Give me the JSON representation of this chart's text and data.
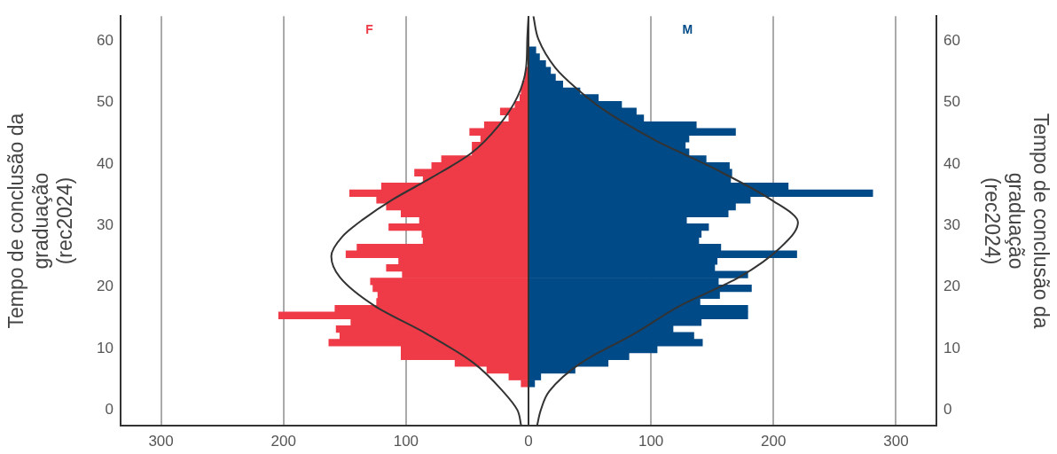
{
  "chart_data": {
    "type": "bar",
    "orientation": "horizontal",
    "stacked": true,
    "ylabel": "Tempo de conclusão da graduação (rec2024)",
    "y2label": "Tempo de conclusão da graduação (rec2024)",
    "x": [
      4.35,
      5.46,
      6.56,
      7.66,
      8.77,
      9.87,
      10.98,
      12.08,
      13.18,
      14.29,
      15.39,
      16.5,
      17.6,
      18.7,
      19.81,
      20.91,
      22.02,
      23.12,
      24.22,
      25.33,
      26.43,
      27.54,
      28.64,
      29.74,
      30.85,
      31.95,
      33.06,
      34.16,
      35.26,
      36.37,
      37.47,
      38.58,
      39.68,
      40.78,
      41.89,
      42.99,
      44.1,
      45.2,
      46.3,
      47.41,
      48.51,
      49.62,
      50.72,
      51.82,
      52.93,
      54.03,
      55.14,
      56.24,
      57.34,
      58.45
    ],
    "series": [
      {
        "name": "F",
        "color": "#ee3b47",
        "values": [
          -6,
          -16,
          -34,
          -60,
          -104,
          -104,
          -163,
          -154,
          -157,
          -145,
          -204,
          -158,
          -124,
          -123,
          -127,
          -129,
          -103,
          -116,
          -106,
          -149,
          -140,
          -86,
          -87,
          -114,
          -89,
          -104,
          -116,
          -124,
          -146,
          -120,
          -86,
          -93,
          -79,
          -71,
          -46,
          -46,
          -39,
          -48,
          -36,
          -16,
          -23,
          -11,
          -7,
          -6,
          -5,
          -3,
          -2,
          0,
          0,
          0
        ]
      },
      {
        "name": "M",
        "color": "#004a87",
        "values": [
          5,
          10,
          38,
          65,
          82,
          105,
          142,
          135,
          118,
          141,
          179,
          179,
          140,
          156,
          182,
          155,
          179,
          152,
          154,
          219,
          157,
          139,
          141,
          147,
          129,
          163,
          169,
          181,
          281,
          212,
          165,
          166,
          164,
          145,
          131,
          128,
          131,
          169,
          137,
          94,
          88,
          76,
          57,
          42,
          28,
          22,
          18,
          14,
          9,
          6
        ]
      },
      {
        "type": "line",
        "color": "#333333",
        "x": [
          -2.5,
          0,
          3.1,
          7.7,
          12.4,
          17.0,
          21.6,
          25.0,
          28.2,
          31.0,
          34.2,
          37.9,
          41.7,
          46.3,
          50.9,
          55.6,
          60.3,
          64
        ],
        "values": [
          -6,
          -9,
          -21,
          -45,
          -83,
          -126,
          -154,
          -161,
          -152,
          -135,
          -111,
          -78,
          -47,
          -24,
          -9,
          -2,
          -1,
          0
        ]
      },
      {
        "type": "line",
        "color": "#333333",
        "x": [
          -2.5,
          0,
          3.1,
          7.7,
          12.4,
          17.0,
          21.6,
          26.3,
          30.5,
          34.2,
          39.3,
          43.9,
          48.7,
          52.3,
          55.6,
          60.3,
          64
        ],
        "values": [
          7,
          10,
          17,
          43,
          86,
          124,
          172,
          205,
          220,
          198,
          151,
          103,
          62,
          39,
          22,
          8,
          4
        ]
      }
    ],
    "xlim": [
      -333,
      333
    ],
    "xticks": [
      {
        "value": -300,
        "label": "300"
      },
      {
        "value": -200,
        "label": "200"
      },
      {
        "value": -100,
        "label": "100"
      },
      0,
      100,
      200,
      300
    ],
    "ylim": [
      -2.5,
      64
    ],
    "yticks": [
      0,
      10,
      20,
      30,
      40,
      50,
      60
    ],
    "y2lim": [
      -2.5,
      64
    ],
    "y2ticks": [
      0,
      10,
      20,
      30,
      40,
      50,
      60
    ],
    "grid": "x",
    "ref_lines": [
      {
        "axis": "x",
        "value": 0,
        "color": "#333333"
      }
    ]
  }
}
